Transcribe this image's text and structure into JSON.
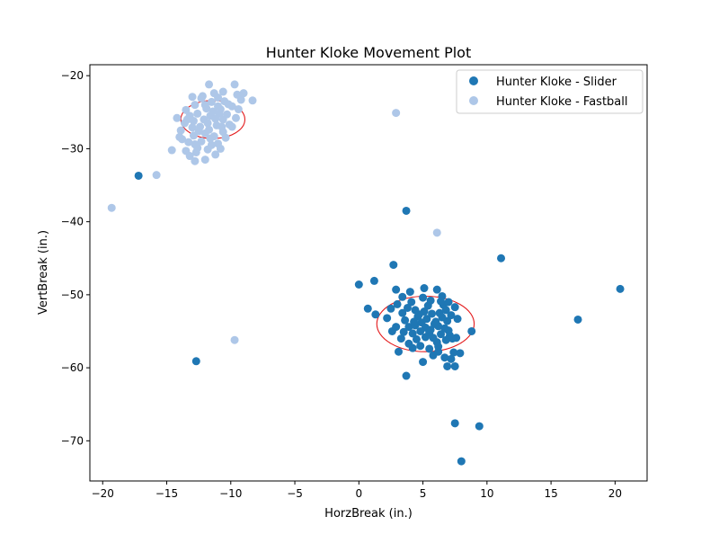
{
  "chart_data": {
    "type": "scatter",
    "title": "Hunter Kloke Movement Plot",
    "xlabel": "HorzBreak (in.)",
    "ylabel": "VertBreak (in.)",
    "xlim": [
      -21.0,
      22.5
    ],
    "ylim": [
      -75.5,
      -18.5
    ],
    "xticks": [
      -20,
      -15,
      -10,
      -5,
      0,
      5,
      10,
      15,
      20
    ],
    "yticks": [
      -70,
      -60,
      -50,
      -40,
      -30,
      -20
    ],
    "grid": false,
    "legend_position": "upper right",
    "series": [
      {
        "name": "Hunter Kloke - Slider",
        "color": "#1f77b4",
        "points": [
          [
            -17.2,
            -33.7
          ],
          [
            -12.7,
            -59.1
          ],
          [
            3.7,
            -38.5
          ],
          [
            2.7,
            -45.9
          ],
          [
            11.1,
            -45.0
          ],
          [
            20.4,
            -49.2
          ],
          [
            17.1,
            -53.4
          ],
          [
            0.0,
            -48.6
          ],
          [
            1.2,
            -48.1
          ],
          [
            0.7,
            -51.9
          ],
          [
            1.3,
            -52.7
          ],
          [
            2.2,
            -53.2
          ],
          [
            2.6,
            -55.0
          ],
          [
            2.9,
            -49.3
          ],
          [
            3.1,
            -57.8
          ],
          [
            3.7,
            -61.1
          ],
          [
            5.0,
            -59.2
          ],
          [
            5.1,
            -49.1
          ],
          [
            6.1,
            -49.3
          ],
          [
            6.5,
            -50.2
          ],
          [
            7.2,
            -58.8
          ],
          [
            7.5,
            -59.8
          ],
          [
            7.9,
            -58.0
          ],
          [
            7.6,
            -55.9
          ],
          [
            8.8,
            -55.0
          ],
          [
            7.5,
            -67.6
          ],
          [
            9.4,
            -68.0
          ],
          [
            8.0,
            -72.8
          ],
          [
            6.9,
            -59.8
          ],
          [
            6.7,
            -58.6
          ],
          [
            4.8,
            -57.0
          ],
          [
            5.5,
            -57.4
          ],
          [
            6.2,
            -57.1
          ],
          [
            3.0,
            -51.3
          ],
          [
            3.4,
            -50.3
          ],
          [
            4.1,
            -51.0
          ],
          [
            4.4,
            -52.1
          ],
          [
            4.6,
            -53.0
          ],
          [
            4.9,
            -53.8
          ],
          [
            5.2,
            -54.5
          ],
          [
            5.5,
            -55.2
          ],
          [
            5.8,
            -55.9
          ],
          [
            6.1,
            -56.5
          ],
          [
            6.4,
            -55.4
          ],
          [
            6.7,
            -54.6
          ],
          [
            6.9,
            -53.6
          ],
          [
            7.2,
            -52.8
          ],
          [
            7.5,
            -51.7
          ],
          [
            7.7,
            -53.3
          ],
          [
            3.6,
            -53.5
          ],
          [
            3.9,
            -54.4
          ],
          [
            4.2,
            -55.3
          ],
          [
            4.5,
            -56.1
          ],
          [
            4.8,
            -55.0
          ],
          [
            5.1,
            -52.3
          ],
          [
            5.4,
            -51.5
          ],
          [
            5.7,
            -52.6
          ],
          [
            6.0,
            -53.7
          ],
          [
            6.3,
            -52.5
          ],
          [
            6.6,
            -51.4
          ],
          [
            6.8,
            -52.1
          ],
          [
            7.1,
            -55.6
          ],
          [
            3.4,
            -52.5
          ],
          [
            3.8,
            -51.8
          ],
          [
            4.4,
            -54.2
          ],
          [
            4.7,
            -52.7
          ],
          [
            5.3,
            -53.3
          ],
          [
            5.6,
            -54.8
          ],
          [
            5.9,
            -54.0
          ],
          [
            6.2,
            -54.3
          ],
          [
            6.5,
            -53.1
          ],
          [
            6.8,
            -56.2
          ],
          [
            7.0,
            -54.9
          ],
          [
            7.3,
            -56.0
          ],
          [
            3.3,
            -56.0
          ],
          [
            3.9,
            -56.7
          ],
          [
            4.2,
            -57.3
          ],
          [
            2.9,
            -54.4
          ],
          [
            2.5,
            -51.9
          ],
          [
            5.0,
            -50.4
          ],
          [
            5.6,
            -50.8
          ],
          [
            6.4,
            -50.9
          ],
          [
            7.0,
            -51.0
          ],
          [
            4.0,
            -49.6
          ],
          [
            6.2,
            -57.8
          ],
          [
            5.8,
            -58.3
          ],
          [
            7.4,
            -57.9
          ],
          [
            3.5,
            -55.1
          ],
          [
            4.3,
            -53.7
          ],
          [
            5.2,
            -55.8
          ]
        ]
      },
      {
        "name": "Hunter Kloke - Fastball",
        "color": "#aec7e8",
        "points": [
          [
            -19.3,
            -38.1
          ],
          [
            -15.8,
            -33.6
          ],
          [
            -9.7,
            -56.2
          ],
          [
            2.9,
            -25.1
          ],
          [
            6.1,
            -41.5
          ],
          [
            -8.3,
            -23.4
          ],
          [
            -14.6,
            -30.2
          ],
          [
            -13.2,
            -31.0
          ],
          [
            -12.8,
            -31.7
          ],
          [
            -12.0,
            -31.5
          ],
          [
            -11.2,
            -30.8
          ],
          [
            -11.7,
            -21.2
          ],
          [
            -9.7,
            -21.2
          ],
          [
            -10.6,
            -22.2
          ],
          [
            -9.5,
            -22.6
          ],
          [
            -11.3,
            -22.4
          ],
          [
            -12.3,
            -23.1
          ],
          [
            -12.8,
            -24.0
          ],
          [
            -13.2,
            -25.5
          ],
          [
            -13.6,
            -26.5
          ],
          [
            -13.9,
            -27.5
          ],
          [
            -14.0,
            -28.4
          ],
          [
            -13.3,
            -29.1
          ],
          [
            -12.6,
            -29.9
          ],
          [
            -11.8,
            -30.1
          ],
          [
            -11.0,
            -29.3
          ],
          [
            -10.4,
            -28.5
          ],
          [
            -9.9,
            -27.0
          ],
          [
            -9.6,
            -25.8
          ],
          [
            -9.4,
            -24.6
          ],
          [
            -10.2,
            -23.9
          ],
          [
            -11.0,
            -24.2
          ],
          [
            -11.9,
            -24.5
          ],
          [
            -12.6,
            -25.2
          ],
          [
            -12.9,
            -26.2
          ],
          [
            -12.4,
            -27.0
          ],
          [
            -11.7,
            -27.4
          ],
          [
            -11.1,
            -26.8
          ],
          [
            -10.6,
            -26.0
          ],
          [
            -10.9,
            -25.2
          ],
          [
            -11.6,
            -25.5
          ],
          [
            -12.1,
            -26.0
          ],
          [
            -12.0,
            -27.9
          ],
          [
            -11.3,
            -28.3
          ],
          [
            -10.6,
            -27.7
          ],
          [
            -10.1,
            -26.7
          ],
          [
            -10.3,
            -25.3
          ],
          [
            -10.8,
            -24.6
          ],
          [
            -11.5,
            -23.6
          ],
          [
            -12.2,
            -22.8
          ],
          [
            -13.0,
            -22.9
          ],
          [
            -13.5,
            -24.7
          ],
          [
            -14.2,
            -25.8
          ],
          [
            -13.8,
            -28.7
          ],
          [
            -12.9,
            -28.2
          ],
          [
            -12.3,
            -29.0
          ],
          [
            -11.5,
            -29.5
          ],
          [
            -10.8,
            -30.0
          ],
          [
            -12.7,
            -30.5
          ],
          [
            -13.5,
            -30.3
          ],
          [
            -11.0,
            -23.0
          ],
          [
            -10.5,
            -23.5
          ],
          [
            -9.9,
            -24.2
          ],
          [
            -9.2,
            -23.3
          ],
          [
            -9.0,
            -22.4
          ],
          [
            -11.4,
            -24.9
          ],
          [
            -11.8,
            -26.5
          ],
          [
            -12.5,
            -27.6
          ],
          [
            -13.0,
            -27.1
          ],
          [
            -13.4,
            -26.0
          ],
          [
            -12.0,
            -24.0
          ],
          [
            -11.2,
            -25.9
          ],
          [
            -10.7,
            -27.0
          ],
          [
            -11.6,
            -28.6
          ],
          [
            -12.8,
            -29.4
          ]
        ]
      }
    ],
    "ellipses": [
      {
        "cx": -11.4,
        "cy": -26.0,
        "rx": 2.5,
        "ry": 2.6,
        "color": "#e31a1c"
      },
      {
        "cx": 5.2,
        "cy": -54.0,
        "rx": 3.8,
        "ry": 3.8,
        "color": "#e31a1c"
      }
    ]
  }
}
